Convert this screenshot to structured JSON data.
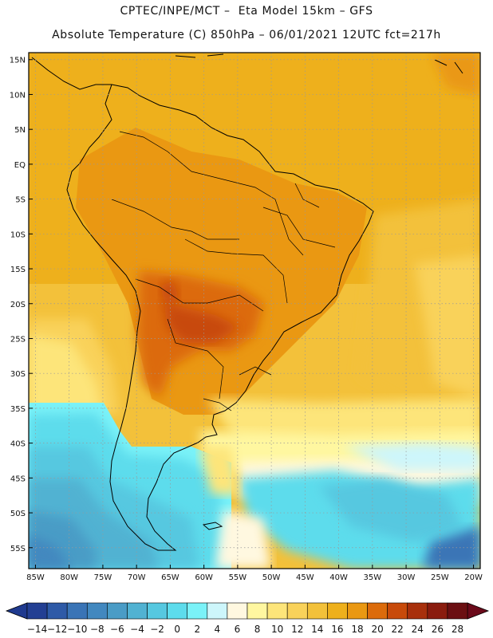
{
  "header": {
    "line1": "CPTEC/INPE/MCT –  Eta Model 15km – GFS",
    "line2": "Absolute Temperature (C) 850hPa – 06/01/2021 12UTC fct=217h"
  },
  "map": {
    "lon_range": [
      -86,
      -19
    ],
    "lat_range": [
      -58,
      16
    ],
    "lat_labels": [
      "15N",
      "10N",
      "5N",
      "EQ",
      "5S",
      "10S",
      "15S",
      "20S",
      "25S",
      "30S",
      "35S",
      "40S",
      "45S",
      "50S",
      "55S"
    ],
    "lat_values": [
      15,
      10,
      5,
      0,
      -5,
      -10,
      -15,
      -20,
      -25,
      -30,
      -35,
      -40,
      -45,
      -50,
      -55
    ],
    "lon_labels": [
      "85W",
      "80W",
      "75W",
      "70W",
      "65W",
      "60W",
      "55W",
      "50W",
      "45W",
      "40W",
      "35W",
      "30W",
      "25W",
      "20W"
    ],
    "lon_values": [
      -85,
      -80,
      -75,
      -70,
      -65,
      -60,
      -55,
      -50,
      -45,
      -40,
      -35,
      -30,
      -25,
      -20
    ],
    "grid": "dotted"
  },
  "colorbar": {
    "labels": [
      "-14",
      "-12",
      "-10",
      "-8",
      "-6",
      "-4",
      "-2",
      "0",
      "2",
      "4",
      "6",
      "8",
      "10",
      "12",
      "14",
      "16",
      "18",
      "20",
      "22",
      "24",
      "26",
      "28"
    ],
    "low_color": "#1f3a8f",
    "high_color": "#6b0a1a",
    "colors": [
      "#233f93",
      "#2e5aa7",
      "#3a74b6",
      "#4288bf",
      "#4a9cc6",
      "#51b2d2",
      "#56c8e0",
      "#5ddcec",
      "#7af2f8",
      "#cdf6fb",
      "#fff8e0",
      "#fff7a0",
      "#fde57a",
      "#f9d25a",
      "#f3c13a",
      "#eeb01c",
      "#ea9812",
      "#dc6b0b",
      "#c84a0a",
      "#a8300c",
      "#8a1c0e",
      "#6b0f12"
    ]
  }
}
